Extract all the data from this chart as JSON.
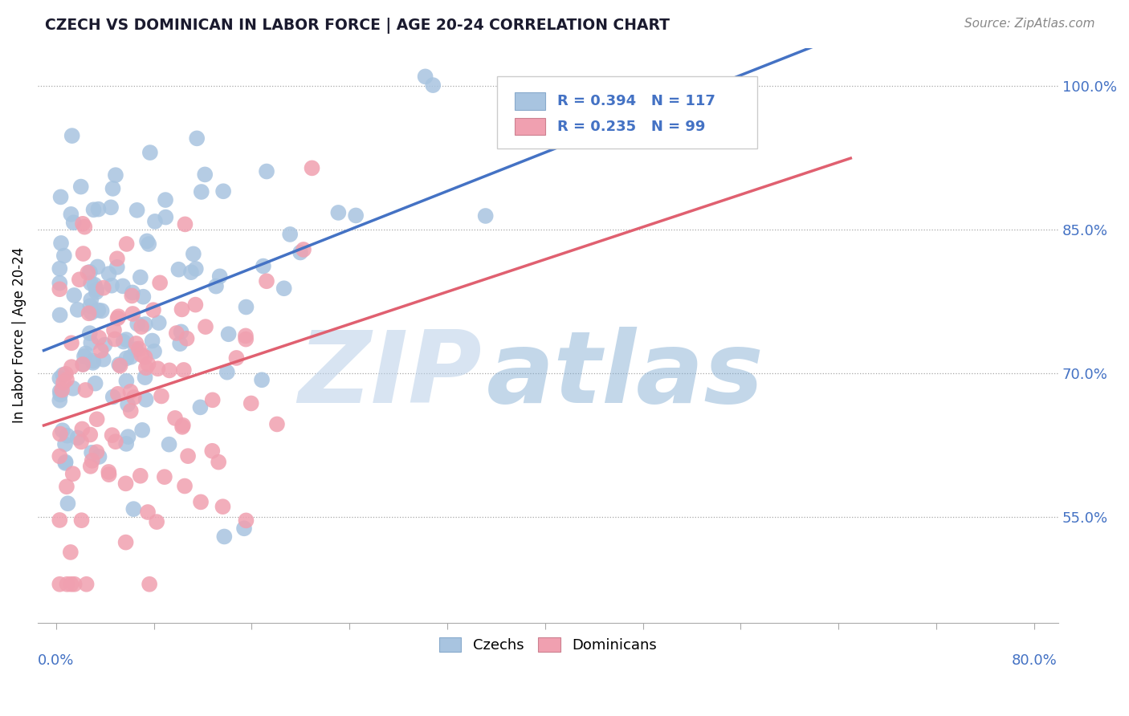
{
  "title": "CZECH VS DOMINICAN IN LABOR FORCE | AGE 20-24 CORRELATION CHART",
  "source": "Source: ZipAtlas.com",
  "ylabel": "In Labor Force | Age 20-24",
  "yticks": [
    "55.0%",
    "70.0%",
    "85.0%",
    "100.0%"
  ],
  "ytick_values": [
    0.55,
    0.7,
    0.85,
    1.0
  ],
  "xrange": [
    0.0,
    0.8
  ],
  "yrange": [
    0.44,
    1.04
  ],
  "czech_R": 0.394,
  "czech_N": 117,
  "dominican_R": 0.235,
  "dominican_N": 99,
  "czech_color": "#a8c4e0",
  "dominican_color": "#f0a0b0",
  "czech_line_color": "#4472c4",
  "dominican_line_color": "#e06070",
  "legend_label_czech": "Czechs",
  "legend_label_dominican": "Dominicans",
  "title_color": "#1a1a2e",
  "axis_color": "#4472c4",
  "watermark_zip": "ZIP",
  "watermark_atlas": "atlas"
}
